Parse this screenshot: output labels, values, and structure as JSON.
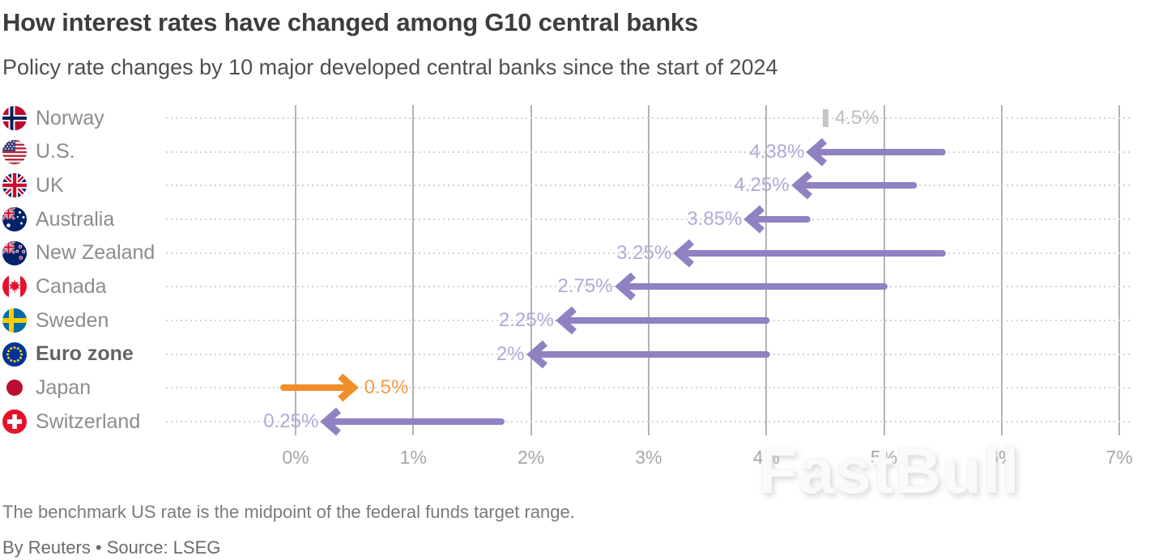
{
  "header": {
    "title": "How interest rates have changed among G10 central banks",
    "subtitle": "Policy rate changes by 10 major developed central banks since the start of 2024"
  },
  "chart_data": {
    "type": "arrow-range",
    "title": "How interest rates have changed among G10 central banks",
    "subtitle": "Policy rate changes by 10 major developed central banks since the start of 2024",
    "x_axis": {
      "min": 0,
      "max": 7,
      "tick_step": 1,
      "unit": "%",
      "tick_labels": [
        "0%",
        "1%",
        "2%",
        "3%",
        "4%",
        "5%",
        "6%",
        "7%"
      ],
      "grid": true
    },
    "rows": [
      {
        "country": "Norway",
        "flag": "norway",
        "start": 4.5,
        "end": 4.5,
        "value_label": "4.5%",
        "change": "hold"
      },
      {
        "country": "U.S.",
        "flag": "us",
        "start": 5.5,
        "end": 4.38,
        "value_label": "4.38%",
        "change": "cut"
      },
      {
        "country": "UK",
        "flag": "uk",
        "start": 5.25,
        "end": 4.25,
        "value_label": "4.25%",
        "change": "cut"
      },
      {
        "country": "Australia",
        "flag": "australia",
        "start": 4.35,
        "end": 3.85,
        "value_label": "3.85%",
        "change": "cut"
      },
      {
        "country": "New Zealand",
        "flag": "new-zealand",
        "start": 5.5,
        "end": 3.25,
        "value_label": "3.25%",
        "change": "cut"
      },
      {
        "country": "Canada",
        "flag": "canada",
        "start": 5.0,
        "end": 2.75,
        "value_label": "2.75%",
        "change": "cut"
      },
      {
        "country": "Sweden",
        "flag": "sweden",
        "start": 4.0,
        "end": 2.25,
        "value_label": "2.25%",
        "change": "cut"
      },
      {
        "country": "Euro zone",
        "flag": "eurozone",
        "start": 4.0,
        "end": 2.0,
        "value_label": "2%",
        "change": "cut",
        "emphasis": true
      },
      {
        "country": "Japan",
        "flag": "japan",
        "start": -0.1,
        "end": 0.5,
        "value_label": "0.5%",
        "change": "hike"
      },
      {
        "country": "Switzerland",
        "flag": "switzerland",
        "start": 1.75,
        "end": 0.25,
        "value_label": "0.25%",
        "change": "cut"
      }
    ],
    "colors": {
      "cut": "#8f81c2",
      "cut_label": "#b2a9d8",
      "hike": "#ef8e28",
      "hike_label": "#f19c44",
      "hold": "#c6c6c6",
      "hold_label": "#bdbdbd"
    }
  },
  "footer": {
    "note": "The benchmark US rate is the midpoint of the federal funds target range.",
    "byline": "By Reuters • Source: LSEG"
  },
  "watermark": "FastBull"
}
